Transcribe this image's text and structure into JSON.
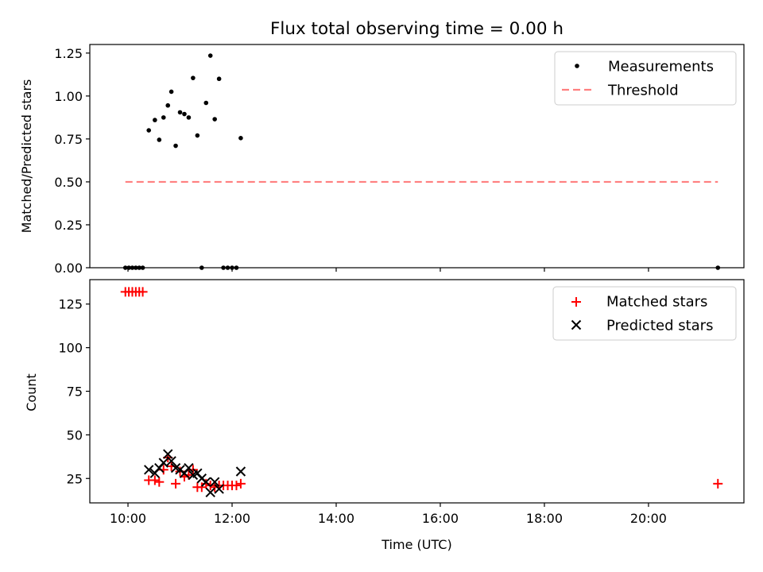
{
  "chart_data": [
    {
      "type": "scatter",
      "title": "Flux total observing time = 0.00 h",
      "xlabel": "",
      "ylabel": "Matched/Predicted stars",
      "xlim": [
        "09:16",
        "21:50"
      ],
      "ylim": [
        0,
        1.3
      ],
      "yticks": [
        0.0,
        0.25,
        0.5,
        0.75,
        1.0,
        1.25
      ],
      "ytick_labels": [
        "0.00",
        "0.25",
        "0.50",
        "0.75",
        "1.00",
        "1.25"
      ],
      "legend": "top-right",
      "series": [
        {
          "name": "Measurements",
          "kind": "scatter",
          "color": "#000000",
          "points": [
            {
              "x": "09:57",
              "y": 0.0
            },
            {
              "x": "10:01",
              "y": 0.0
            },
            {
              "x": "10:05",
              "y": 0.0
            },
            {
              "x": "10:09",
              "y": 0.0
            },
            {
              "x": "10:13",
              "y": 0.0
            },
            {
              "x": "10:17",
              "y": 0.0
            },
            {
              "x": "10:24",
              "y": 0.8
            },
            {
              "x": "10:31",
              "y": 0.86
            },
            {
              "x": "10:36",
              "y": 0.745
            },
            {
              "x": "10:41",
              "y": 0.875
            },
            {
              "x": "10:46",
              "y": 0.945
            },
            {
              "x": "10:50",
              "y": 1.025
            },
            {
              "x": "10:55",
              "y": 0.71
            },
            {
              "x": "11:00",
              "y": 0.905
            },
            {
              "x": "11:05",
              "y": 0.895
            },
            {
              "x": "11:10",
              "y": 0.875
            },
            {
              "x": "11:15",
              "y": 1.105
            },
            {
              "x": "11:20",
              "y": 0.77
            },
            {
              "x": "11:25",
              "y": 0.0
            },
            {
              "x": "11:30",
              "y": 0.96
            },
            {
              "x": "11:35",
              "y": 1.235
            },
            {
              "x": "11:40",
              "y": 0.865
            },
            {
              "x": "11:45",
              "y": 1.1
            },
            {
              "x": "11:50",
              "y": 0.0
            },
            {
              "x": "11:55",
              "y": 0.0
            },
            {
              "x": "12:00",
              "y": 0.0
            },
            {
              "x": "12:05",
              "y": 0.0
            },
            {
              "x": "12:10",
              "y": 0.755
            },
            {
              "x": "21:20",
              "y": 0.0
            }
          ]
        },
        {
          "name": "Threshold",
          "kind": "line",
          "color": "#ff7f7f",
          "points": [
            {
              "x": "09:57",
              "y": 0.5
            },
            {
              "x": "21:20",
              "y": 0.5
            }
          ]
        }
      ]
    },
    {
      "type": "scatter",
      "title": "",
      "xlabel": "Time (UTC)",
      "ylabel": "Count",
      "xlim": [
        "09:16",
        "21:50"
      ],
      "ylim": [
        11,
        139
      ],
      "xticks": [
        "10:00",
        "12:00",
        "14:00",
        "16:00",
        "18:00",
        "20:00"
      ],
      "yticks": [
        25,
        50,
        75,
        100,
        125
      ],
      "ytick_labels": [
        "25",
        "50",
        "75",
        "100",
        "125"
      ],
      "legend": "top-right",
      "series": [
        {
          "name": "Matched stars",
          "kind": "plus",
          "color": "#ff0000",
          "points": [
            {
              "x": "09:57",
              "y": 132
            },
            {
              "x": "10:01",
              "y": 132
            },
            {
              "x": "10:05",
              "y": 132
            },
            {
              "x": "10:09",
              "y": 132
            },
            {
              "x": "10:13",
              "y": 132
            },
            {
              "x": "10:17",
              "y": 132
            },
            {
              "x": "10:24",
              "y": 24
            },
            {
              "x": "10:31",
              "y": 24
            },
            {
              "x": "10:36",
              "y": 23
            },
            {
              "x": "10:41",
              "y": 30
            },
            {
              "x": "10:46",
              "y": 37
            },
            {
              "x": "10:50",
              "y": 32
            },
            {
              "x": "10:55",
              "y": 22
            },
            {
              "x": "11:00",
              "y": 29
            },
            {
              "x": "11:05",
              "y": 26
            },
            {
              "x": "11:10",
              "y": 27
            },
            {
              "x": "11:15",
              "y": 30
            },
            {
              "x": "11:20",
              "y": 20
            },
            {
              "x": "11:25",
              "y": 20
            },
            {
              "x": "11:30",
              "y": 22
            },
            {
              "x": "11:35",
              "y": 21
            },
            {
              "x": "11:40",
              "y": 20
            },
            {
              "x": "11:45",
              "y": 21
            },
            {
              "x": "11:50",
              "y": 21
            },
            {
              "x": "11:55",
              "y": 21
            },
            {
              "x": "12:00",
              "y": 21
            },
            {
              "x": "12:05",
              "y": 21
            },
            {
              "x": "12:10",
              "y": 22
            },
            {
              "x": "21:20",
              "y": 22
            }
          ]
        },
        {
          "name": "Predicted stars",
          "kind": "x",
          "color": "#000000",
          "points": [
            {
              "x": "10:24",
              "y": 30
            },
            {
              "x": "10:31",
              "y": 28
            },
            {
              "x": "10:36",
              "y": 31
            },
            {
              "x": "10:41",
              "y": 34
            },
            {
              "x": "10:46",
              "y": 39
            },
            {
              "x": "10:50",
              "y": 35
            },
            {
              "x": "10:55",
              "y": 31
            },
            {
              "x": "11:00",
              "y": 30
            },
            {
              "x": "11:05",
              "y": 28
            },
            {
              "x": "11:10",
              "y": 31
            },
            {
              "x": "11:15",
              "y": 27
            },
            {
              "x": "11:20",
              "y": 28
            },
            {
              "x": "11:25",
              "y": 25
            },
            {
              "x": "11:30",
              "y": 23
            },
            {
              "x": "11:35",
              "y": 17
            },
            {
              "x": "11:40",
              "y": 23
            },
            {
              "x": "11:45",
              "y": 19
            },
            {
              "x": "12:10",
              "y": 29
            }
          ]
        }
      ]
    }
  ]
}
